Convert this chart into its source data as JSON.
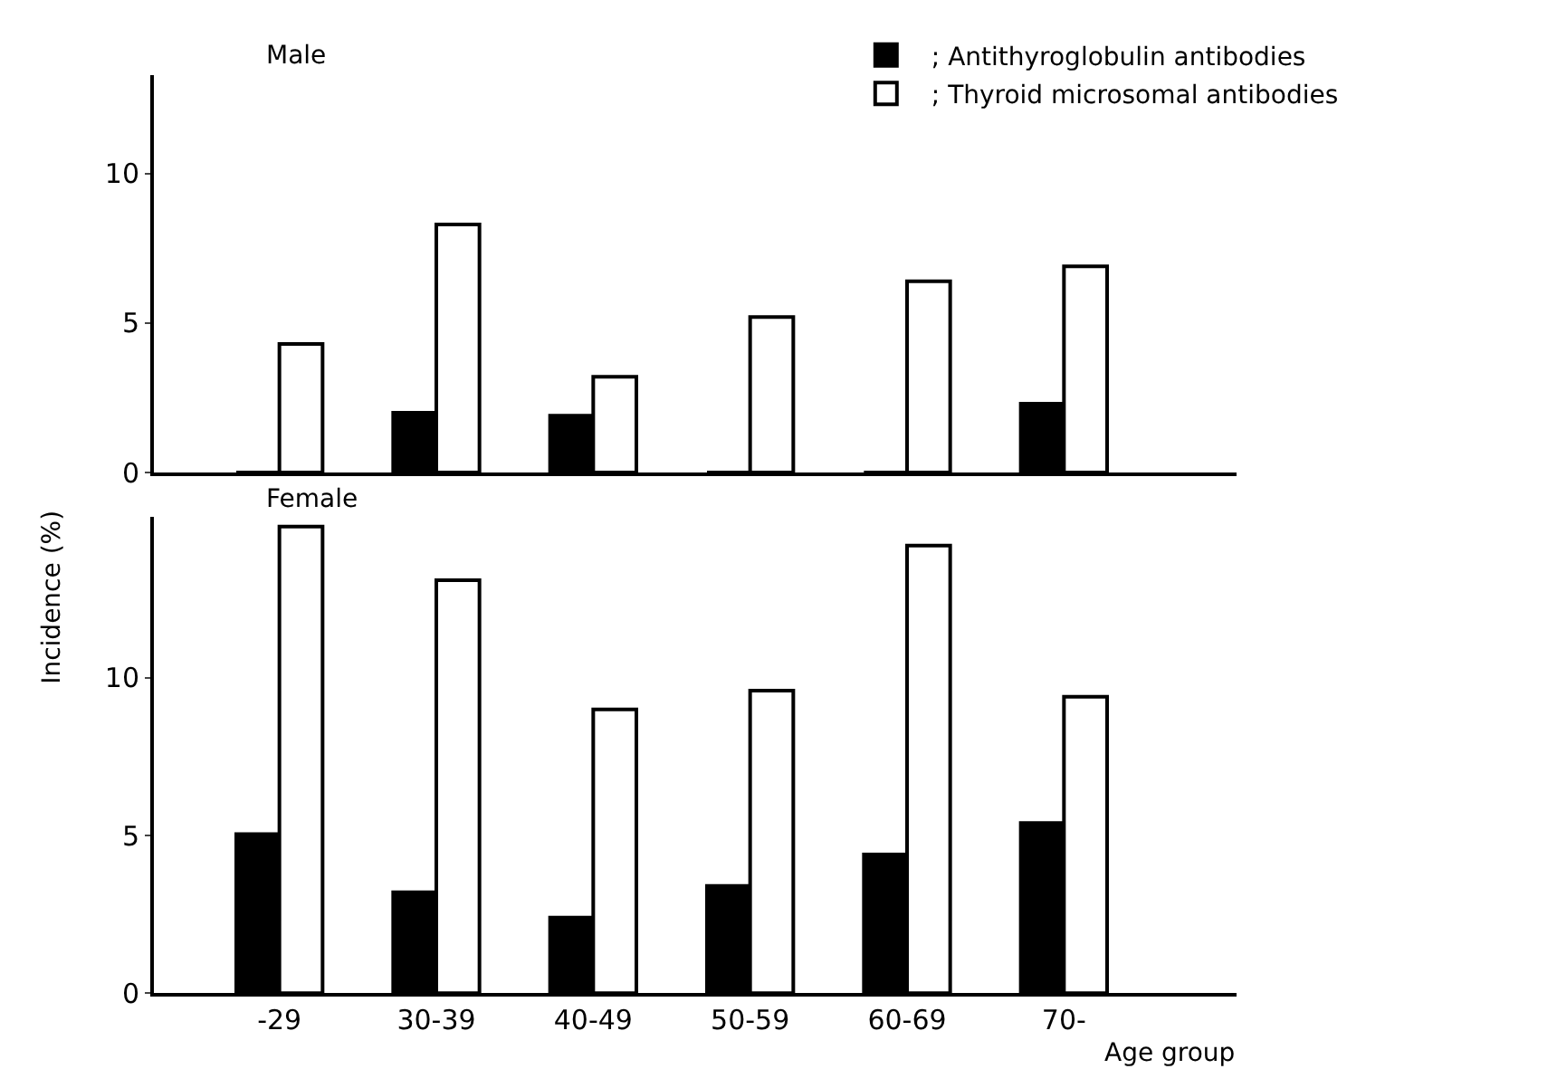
{
  "chart_data": [
    {
      "type": "bar",
      "title": "Male",
      "categories": [
        null,
        null,
        null,
        null,
        null,
        null
      ],
      "series": [
        {
          "name": "; Antithyroglobulin antibodies",
          "color": "#000000",
          "values": [
            0,
            2.0,
            1.9,
            0,
            0,
            2.3
          ]
        },
        {
          "name": "; Thyroid microsomal antibodies",
          "color": "#ffffff",
          "values": [
            4.3,
            8.3,
            3.2,
            5.2,
            6.4,
            6.9
          ]
        }
      ],
      "ylim": [
        0,
        13.3
      ],
      "yticks": [
        0,
        5,
        10
      ],
      "legend": "top right"
    },
    {
      "type": "bar",
      "title": "Female",
      "categories": [
        "-29",
        "30-39",
        "40-49",
        "50-59",
        "60-69",
        "70-"
      ],
      "series": [
        {
          "color": "#000000",
          "values": [
            5.05,
            3.2,
            2.4,
            3.4,
            4.4,
            5.4
          ]
        },
        {
          "color": "#ffffff",
          "values": [
            14.8,
            13.1,
            9.0,
            9.6,
            14.2,
            9.4
          ]
        }
      ],
      "ylim": [
        0,
        15.1
      ],
      "yticks": [
        0,
        5,
        10
      ],
      "xlabel": "Age group",
      "ylabel": "Incidence (%)"
    }
  ]
}
